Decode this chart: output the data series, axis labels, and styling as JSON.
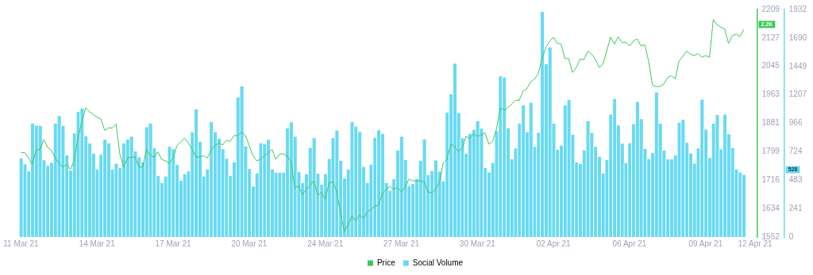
{
  "chart_data": {
    "type": "bar",
    "categories": [
      "11 Mar 21",
      null,
      null,
      null,
      null,
      null,
      null,
      null,
      null,
      null,
      null,
      null,
      null,
      null,
      null,
      null,
      null,
      null,
      null,
      null,
      "14 Mar 21",
      null,
      null,
      null,
      null,
      null,
      null,
      null,
      null,
      null,
      null,
      null,
      null,
      null,
      null,
      null,
      null,
      null,
      null,
      null,
      "17 Mar 21",
      null,
      null,
      null,
      null,
      null,
      null,
      null,
      null,
      null,
      null,
      null,
      null,
      null,
      null,
      null,
      null,
      null,
      null,
      null,
      "20 Mar 21",
      null,
      null,
      null,
      null,
      null,
      null,
      null,
      null,
      null,
      null,
      null,
      null,
      null,
      null,
      null,
      null,
      null,
      null,
      null,
      "24 Mar 21",
      null,
      null,
      null,
      null,
      null,
      null,
      null,
      null,
      null,
      null,
      null,
      null,
      null,
      null,
      null,
      null,
      null,
      null,
      null,
      "27 Mar 21",
      null,
      null,
      null,
      null,
      null,
      null,
      null,
      null,
      null,
      null,
      null,
      null,
      null,
      null,
      null,
      null,
      null,
      null,
      null,
      "30 Mar 21",
      null,
      null,
      null,
      null,
      null,
      null,
      null,
      null,
      null,
      null,
      null,
      null,
      null,
      null,
      null,
      null,
      null,
      null,
      null,
      "02 Apr 21",
      null,
      null,
      null,
      null,
      null,
      null,
      null,
      null,
      null,
      null,
      null,
      null,
      null,
      null,
      null,
      null,
      null,
      null,
      null,
      "06 Apr 21",
      null,
      null,
      null,
      null,
      null,
      null,
      null,
      null,
      null,
      null,
      null,
      null,
      null,
      null,
      null,
      null,
      null,
      null,
      null,
      "09 Apr 21",
      null,
      null,
      null,
      null,
      null,
      null,
      null,
      null,
      null,
      null,
      null,
      null,
      "12 Apr 21"
    ],
    "series": [
      {
        "name": "Price",
        "type": "line",
        "color": "#3cc85a",
        "values": [
          1796,
          1796,
          1780,
          1762,
          1802,
          1805,
          1833,
          1811,
          1802,
          1780,
          1765,
          1754,
          1762,
          1747,
          1772,
          1838,
          1885,
          1925,
          1914,
          1906,
          1898,
          1893,
          1860,
          1867,
          1867,
          1878,
          1791,
          1754,
          1780,
          1783,
          1783,
          1754,
          1754,
          1805,
          1787,
          1783,
          1798,
          1776,
          1772,
          1765,
          1780,
          1816,
          1826,
          1838,
          1823,
          1805,
          1783,
          1783,
          1787,
          1780,
          1802,
          1816,
          1823,
          1818,
          1831,
          1828,
          1845,
          1845,
          1855,
          1845,
          1816,
          1787,
          1772,
          1776,
          1787,
          1794,
          1805,
          1776,
          1792,
          1792,
          1786,
          1769,
          1692,
          1700,
          1674,
          1690,
          1700,
          1714,
          1673,
          1680,
          1661,
          1708,
          1712,
          1683,
          1620,
          1568,
          1587,
          1612,
          1599,
          1616,
          1605,
          1623,
          1632,
          1641,
          1644,
          1678,
          1690,
          1698,
          1690,
          1695,
          1683,
          1696,
          1719,
          1714,
          1714,
          1714,
          1711,
          1682,
          1679,
          1690,
          1709,
          1765,
          1776,
          1820,
          1813,
          1798,
          1809,
          1843,
          1836,
          1850,
          1843,
          1846,
          1853,
          1820,
          1829,
          1863,
          1925,
          1918,
          1925,
          1936,
          1947,
          1947,
          1973,
          1980,
          2000,
          2008,
          2024,
          2067,
          2100,
          2118,
          2129,
          2111,
          2109,
          2067,
          2067,
          2027,
          2042,
          2066,
          2064,
          2089,
          2080,
          2066,
          2042,
          2051,
          2090,
          2129,
          2109,
          2130,
          2114,
          2114,
          2104,
          2118,
          2124,
          2104,
          2107,
          2060,
          1991,
          1986,
          1987,
          1994,
          2013,
          2018,
          2009,
          2060,
          2074,
          2089,
          2080,
          2076,
          2082,
          2071,
          2076,
          2071,
          2180,
          2165,
          2158,
          2153,
          2111,
          2133,
          2138,
          2131,
          2151,
          null,
          null,
          null
        ]
      },
      {
        "name": "Social Volume",
        "axis": "y2",
        "color": "#68daf2",
        "values": [
          666,
          617,
          557,
          963,
          946,
          942,
          651,
          604,
          629,
          963,
          1027,
          942,
          694,
          563,
          880,
          1062,
          1092,
          856,
          794,
          706,
          574,
          698,
          826,
          796,
          574,
          623,
          585,
          796,
          826,
          852,
          728,
          677,
          634,
          933,
          963,
          754,
          520,
          458,
          514,
          766,
          745,
          612,
          478,
          531,
          557,
          888,
          1083,
          809,
          514,
          574,
          978,
          891,
          835,
          745,
          664,
          520,
          634,
          1184,
          1280,
          771,
          578,
          428,
          540,
          796,
          788,
          826,
          573,
          546,
          546,
          546,
          922,
          974,
          852,
          552,
          458,
          531,
          757,
          839,
          537,
          445,
          535,
          663,
          839,
          905,
          648,
          496,
          573,
          976,
          937,
          894,
          595,
          458,
          616,
          843,
          907,
          877,
          458,
          394,
          492,
          736,
          852,
          655,
          434,
          449,
          492,
          646,
          830,
          526,
          561,
          650,
          556,
          471,
          1057,
          1211,
          1472,
          1053,
          839,
          706,
          877,
          911,
          984,
          920,
          586,
          548,
          629,
          899,
          1365,
          1355,
          924,
          659,
          753,
          963,
          1119,
          890,
          1141,
          766,
          886,
          1911,
          1468,
          1611,
          963,
          740,
          775,
          1119,
          1164,
          869,
          633,
          621,
          736,
          984,
          884,
          766,
          681,
          541,
          655,
          1040,
          1173,
          948,
          792,
          629,
          798,
          959,
          1147,
          1001,
          749,
          663,
          713,
          1228,
          963,
          734,
          659,
          659,
          693,
          969,
          997,
          800,
          710,
          623,
          753,
          1168,
          912,
          672,
          963,
          1036,
          745,
          1040,
          873,
          755,
          574,
          548,
          528,
          null,
          null,
          null
        ]
      }
    ],
    "ylim": [
      1552,
      2209
    ],
    "yticks": [
      1552,
      1634,
      1716,
      1799,
      1881,
      1963,
      2045,
      2127,
      2209
    ],
    "y2lim": [
      0,
      1932
    ],
    "y2ticks": [
      0,
      241,
      483,
      724,
      966,
      1207,
      1449,
      1690,
      1932
    ],
    "annotations": [
      "2.2K",
      "528"
    ],
    "legend": "bottom",
    "marker": "none",
    "line_style": "solid"
  }
}
